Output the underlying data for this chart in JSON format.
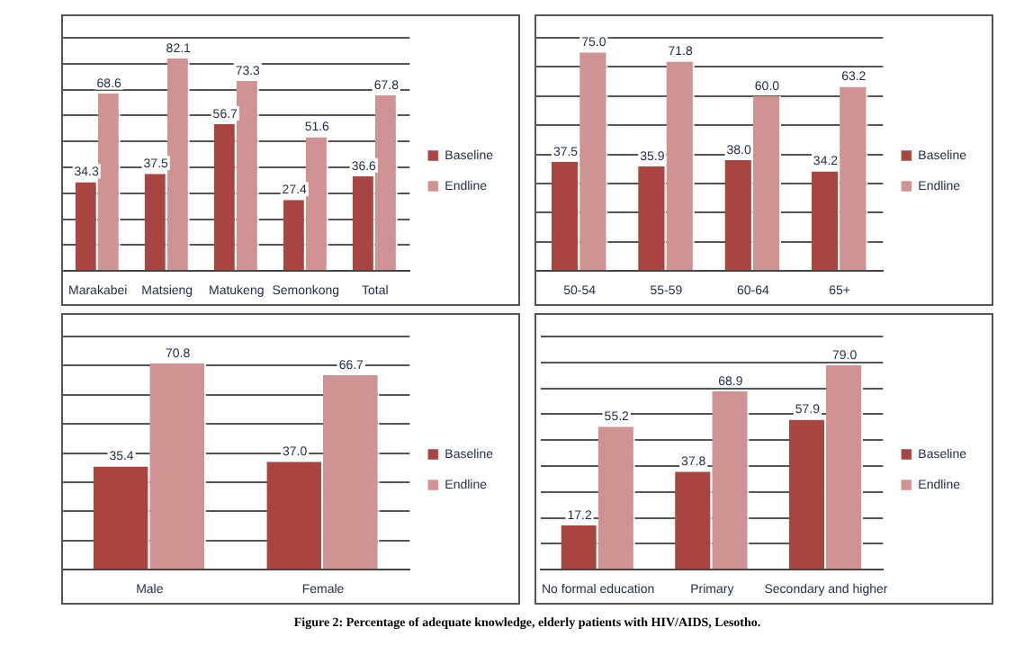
{
  "chart_data": [
    {
      "type": "bar",
      "categories": [
        "Marakabei",
        "Matsieng",
        "Matukeng",
        "Semonkong",
        "Total"
      ],
      "series": [
        {
          "name": "Baseline",
          "color": "#a84541",
          "values": [
            34.3,
            37.5,
            56.7,
            27.4,
            36.6
          ],
          "value_labels": [
            "34.3",
            "37.5",
            "56.7",
            "27.4",
            "36.6"
          ]
        },
        {
          "name": "Endline",
          "color": "#d09393",
          "values": [
            68.6,
            82.1,
            73.3,
            51.6,
            67.8
          ],
          "value_labels": [
            "68.6",
            "82.1",
            "73.3",
            "51.6",
            "67.8"
          ]
        }
      ],
      "ylim": [
        0,
        90
      ],
      "yticks": [
        {
          "value": 0,
          "label": null
        },
        {
          "value": 10,
          "label": null
        },
        {
          "value": 20,
          "label": null
        },
        {
          "value": 30,
          "label": null
        },
        {
          "value": 40,
          "label": null
        },
        {
          "value": 50,
          "label": null
        },
        {
          "value": 60,
          "label": null
        },
        {
          "value": 70,
          "label": null
        },
        {
          "value": 80,
          "label": null
        },
        {
          "value": 90,
          "label": null
        }
      ],
      "tick_labels": "x",
      "grid": "y",
      "legend": "right"
    },
    {
      "type": "bar",
      "categories": [
        "50-54",
        "55-59",
        "60-64",
        "65+"
      ],
      "series": [
        {
          "name": "Baseline",
          "color": "#a84541",
          "values": [
            37.5,
            35.9,
            38,
            34.2
          ],
          "value_labels": [
            "37.5",
            "35.9",
            "38.0",
            "34.2"
          ]
        },
        {
          "name": "Endline",
          "color": "#d09393",
          "values": [
            75,
            71.8,
            60,
            63.2
          ],
          "value_labels": [
            "75.0",
            "71.8",
            "60.0",
            "63.2"
          ]
        }
      ],
      "ylim": [
        0,
        80
      ],
      "yticks": [
        {
          "value": 0,
          "label": null
        },
        {
          "value": 10,
          "label": null
        },
        {
          "value": 20,
          "label": null
        },
        {
          "value": 30,
          "label": null
        },
        {
          "value": 40,
          "label": null
        },
        {
          "value": 50,
          "label": null
        },
        {
          "value": 60,
          "label": null
        },
        {
          "value": 70,
          "label": null
        },
        {
          "value": 80,
          "label": null
        }
      ],
      "tick_labels": "x",
      "grid": "y",
      "legend": "right"
    },
    {
      "type": "bar",
      "categories": [
        "Male",
        "Female"
      ],
      "series": [
        {
          "name": "Baseline",
          "color": "#a84541",
          "values": [
            35.4,
            37
          ],
          "value_labels": [
            "35.4",
            "37.0"
          ]
        },
        {
          "name": "Endline",
          "color": "#d09393",
          "values": [
            70.8,
            66.7
          ],
          "value_labels": [
            "70.8",
            "66.7"
          ]
        }
      ],
      "ylim": [
        0,
        80
      ],
      "yticks": [
        {
          "value": 0,
          "label": null
        },
        {
          "value": 10,
          "label": null
        },
        {
          "value": 20,
          "label": null
        },
        {
          "value": 30,
          "label": null
        },
        {
          "value": 40,
          "label": null
        },
        {
          "value": 50,
          "label": null
        },
        {
          "value": 60,
          "label": null
        },
        {
          "value": 70,
          "label": null
        },
        {
          "value": 80,
          "label": null
        }
      ],
      "tick_labels": "x",
      "grid": "y",
      "legend": "right"
    },
    {
      "type": "bar",
      "categories": [
        "No formal education",
        "Primary",
        "Secondary and higher"
      ],
      "series": [
        {
          "name": "Baseline",
          "color": "#a84541",
          "values": [
            17.2,
            37.8,
            57.9
          ],
          "value_labels": [
            "17.2",
            "37.8",
            "57.9"
          ]
        },
        {
          "name": "Endline",
          "color": "#d09393",
          "values": [
            55.2,
            68.9,
            79
          ],
          "value_labels": [
            "55.2",
            "68.9",
            "79.0"
          ]
        }
      ],
      "ylim": [
        0,
        90
      ],
      "yticks": [
        {
          "value": 0,
          "label": null
        },
        {
          "value": 10,
          "label": null
        },
        {
          "value": 20,
          "label": null
        },
        {
          "value": 30,
          "label": null
        },
        {
          "value": 40,
          "label": null
        },
        {
          "value": 50,
          "label": null
        },
        {
          "value": 60,
          "label": null
        },
        {
          "value": 70,
          "label": null
        },
        {
          "value": 80,
          "label": null
        },
        {
          "value": 90,
          "label": null
        }
      ],
      "tick_labels": "x",
      "grid": "y",
      "legend": "right",
      "annotations": [
        "Figure 2: Percentage of adequate knowledge, elderly patients with HIV/AIDS, Lesotho."
      ]
    }
  ]
}
